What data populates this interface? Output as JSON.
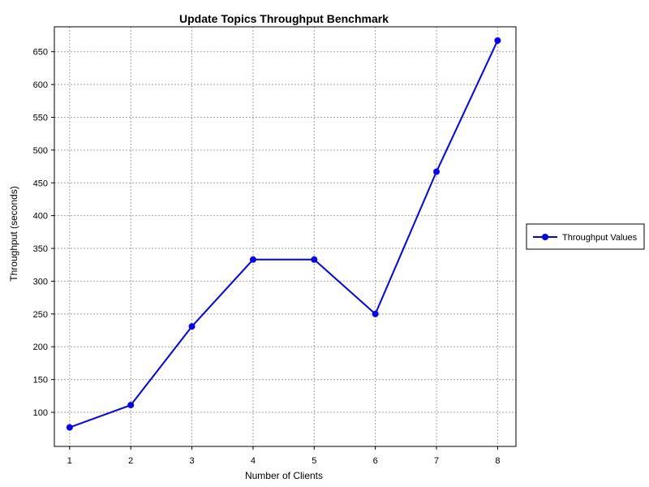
{
  "chart_data": {
    "type": "line",
    "title": "Update Topics Throughput Benchmark",
    "xlabel": "Number of Clients",
    "ylabel": "Throughput (seconds)",
    "x": [
      1,
      2,
      3,
      4,
      5,
      6,
      7,
      8
    ],
    "series": [
      {
        "name": "Throughput Values",
        "color": "#0000ff",
        "values": [
          77,
          111,
          231,
          333,
          333,
          250,
          467,
          667
        ]
      }
    ],
    "xticks": [
      "1",
      "2",
      "3",
      "4",
      "5",
      "6",
      "7",
      "8"
    ],
    "yticks": [
      "100",
      "150",
      "200",
      "250",
      "300",
      "350",
      "400",
      "450",
      "500",
      "550",
      "600",
      "650"
    ],
    "xlim": [
      0.75,
      8.3
    ],
    "ylim": [
      48,
      688
    ],
    "grid": true,
    "legend_position": "right"
  }
}
